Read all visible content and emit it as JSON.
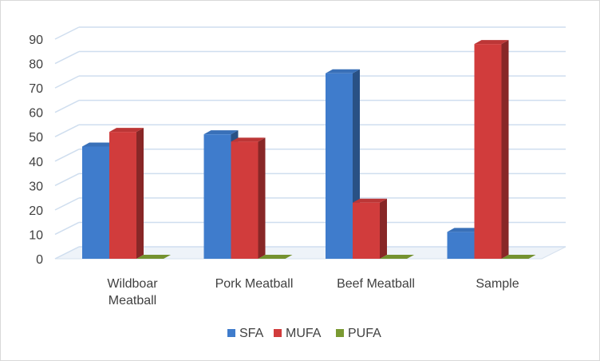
{
  "chart_data": {
    "type": "bar",
    "style": "3d-clustered",
    "categories": [
      [
        "Wildboar",
        "Meatball"
      ],
      [
        "Pork Meatball"
      ],
      [
        "Beef Meatball"
      ],
      [
        "Sample"
      ]
    ],
    "series": [
      {
        "name": "SFA",
        "values": [
          46,
          51,
          76,
          11
        ],
        "color": "#3f7ccc"
      },
      {
        "name": "MUFA",
        "values": [
          52,
          48,
          23,
          88
        ],
        "color": "#d13c3c"
      },
      {
        "name": "PUFA",
        "values": [
          0,
          0,
          0,
          0
        ],
        "color": "#7a9a32"
      }
    ],
    "yticks": [
      0,
      10,
      20,
      30,
      40,
      50,
      60,
      70,
      80,
      90
    ],
    "ylim": [
      0,
      90
    ],
    "grid": true,
    "legend_position": "bottom"
  }
}
